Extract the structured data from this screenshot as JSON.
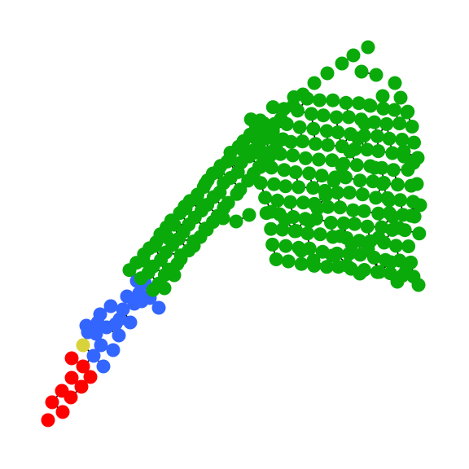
{
  "graph": {
    "background": "#ffffff",
    "edge_color": "#000000",
    "groups": [
      {
        "id": "red",
        "color": "#ff0000",
        "node_count": 14
      },
      {
        "id": "yellow",
        "color": "#d8d33a",
        "node_count": 1
      },
      {
        "id": "blue",
        "color": "#3366ff",
        "node_count": 28
      },
      {
        "id": "green",
        "color": "#0aaa0a",
        "node_count": 300
      }
    ]
  }
}
